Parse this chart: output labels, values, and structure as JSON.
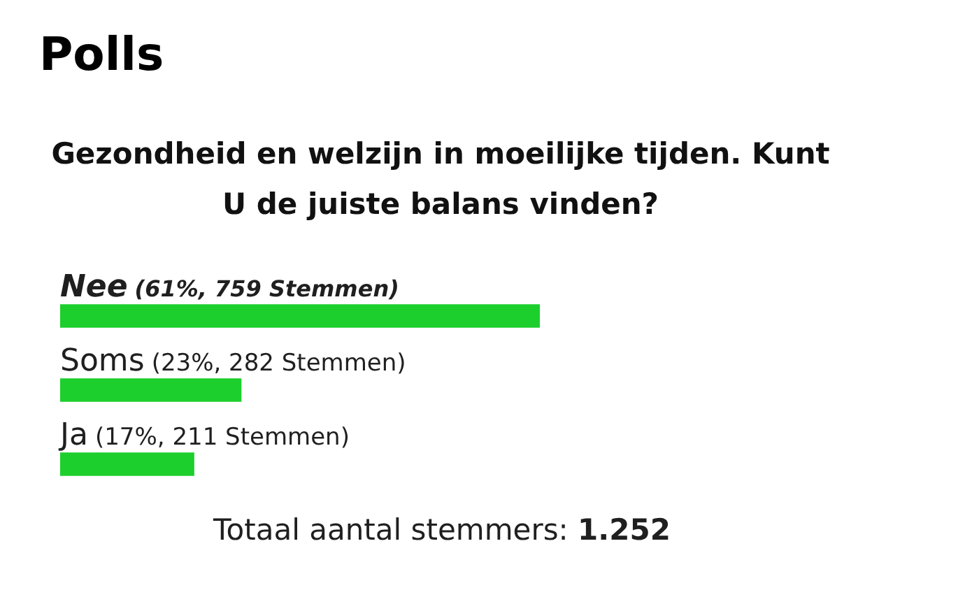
{
  "chart_data": {
    "type": "bar",
    "orientation": "horizontal",
    "title": "Polls",
    "subtitle": "Gezondheid en welzijn in moeilijke tijden. Kunt U de juiste balans vinden?",
    "categories": [
      "Nee",
      "Soms",
      "Ja"
    ],
    "values": [
      61,
      23,
      17
    ],
    "value_labels": [
      "(61%, 759 Stemmen)",
      "(23%, 282 Stemmen)",
      "(17%, 211 Stemmen)"
    ],
    "color": "#1ccf2c",
    "tick_labels": "y",
    "annotations": [
      "Totaal aantal stemmers: 1.252"
    ]
  }
}
